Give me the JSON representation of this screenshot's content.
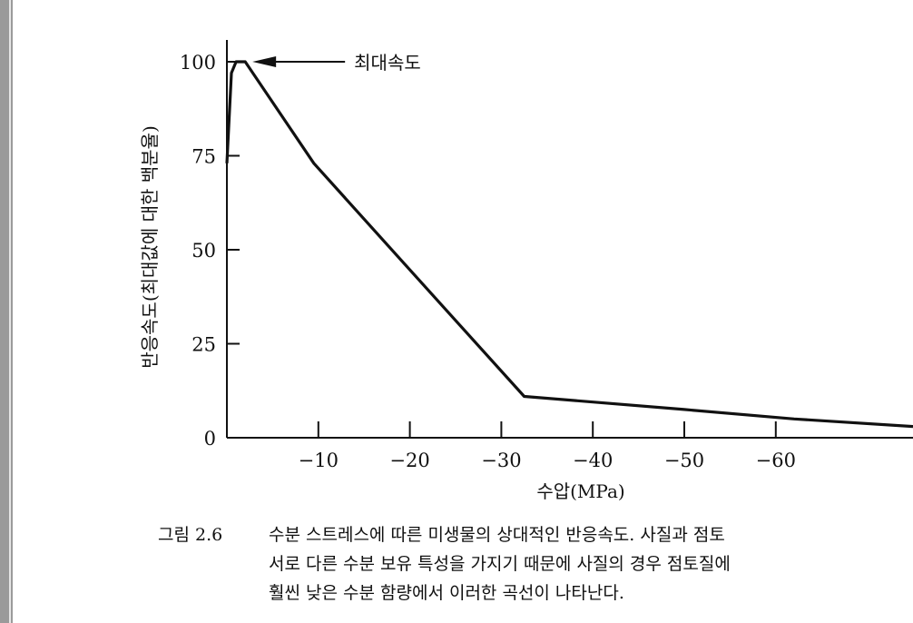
{
  "chart_data": {
    "type": "line",
    "title": "",
    "xlabel": "수압(MPa)",
    "ylabel": "반응속도(최대값에 대한 백분율)",
    "xlim": [
      0,
      -75
    ],
    "ylim": [
      0,
      100
    ],
    "x_ticks": [
      -10,
      -20,
      -30,
      -40,
      -50,
      -60
    ],
    "x_tick_labels": [
      "−10",
      "−20",
      "−30",
      "−40",
      "−50",
      "−60"
    ],
    "y_ticks": [
      0,
      25,
      50,
      75,
      100
    ],
    "y_tick_labels": [
      "0",
      "25",
      "50",
      "75",
      "100"
    ],
    "grid": false,
    "series": [
      {
        "x": [
          0,
          -0.5,
          -1.0,
          -2.0,
          -9.5,
          -19.5,
          -32.5,
          -50,
          -62,
          -75
        ],
        "y": [
          73,
          97,
          100,
          100,
          73,
          46,
          11,
          7.5,
          5,
          3
        ]
      }
    ],
    "annotation": {
      "text": "최대속도",
      "x": -2.0,
      "y": 100
    }
  },
  "caption": {
    "label": "그림 2.6",
    "line1": "수분 스트레스에 따른 미생물의 상대적인 반응속도. 사질과 점토",
    "line2": "서로 다른 수분 보유 특성을 가지기 때문에 사질의 경우 점토질에",
    "line3": "훨씬 낮은 수분 함량에서 이러한 곡선이 나타난다."
  }
}
